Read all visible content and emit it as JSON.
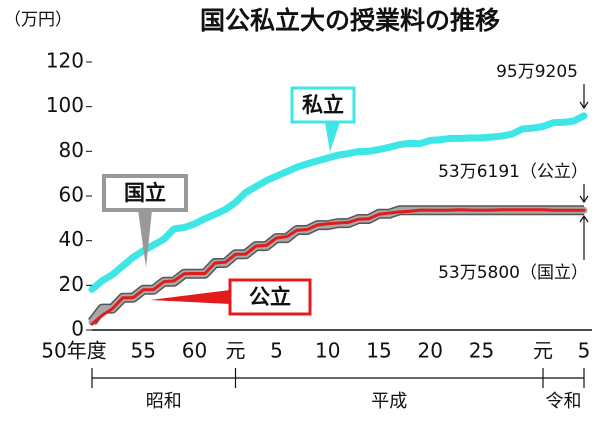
{
  "chart_data": {
    "type": "line",
    "title": "国公私立大の授業料の推移",
    "y_unit": "（万円）",
    "ylim": [
      0,
      120
    ],
    "yticks": [
      0,
      20,
      40,
      60,
      80,
      100,
      120
    ],
    "categories": [
      "50年度",
      null,
      null,
      null,
      null,
      "55",
      null,
      null,
      null,
      null,
      "60",
      null,
      null,
      null,
      "元",
      null,
      null,
      null,
      "5",
      null,
      null,
      null,
      null,
      "10",
      null,
      null,
      null,
      null,
      "15",
      null,
      null,
      null,
      null,
      "20",
      null,
      null,
      null,
      null,
      "25",
      null,
      null,
      null,
      null,
      null,
      "元",
      null,
      null,
      null,
      "5"
    ],
    "eras": [
      "昭和",
      "平成",
      "令和"
    ],
    "series": [
      {
        "name": "私立",
        "color": "#3fe6e6",
        "values": [
          18.2,
          22.1,
          24.8,
          28.7,
          32.5,
          35.5,
          38.0,
          40.6,
          45.3,
          45.9,
          47.5,
          49.8,
          51.8,
          53.9,
          57.1,
          61.6,
          64.2,
          66.9,
          68.9,
          70.9,
          72.9,
          74.4,
          75.7,
          77.0,
          78.3,
          79.0,
          79.9,
          80.0,
          80.8,
          81.8,
          83.0,
          83.6,
          83.4,
          84.9,
          85.2,
          85.8,
          85.8,
          86.0,
          86.0,
          86.4,
          86.8,
          87.8,
          90.0,
          90.4,
          91.1,
          92.8,
          93.0,
          93.6,
          95.9205
        ]
      },
      {
        "name": "国立",
        "color": "#a8a8a8",
        "values": [
          3.6,
          9.6,
          9.6,
          14.4,
          14.4,
          18.0,
          18.0,
          21.6,
          21.6,
          25.2,
          25.2,
          25.2,
          30.0,
          30.0,
          33.96,
          33.96,
          37.56,
          37.56,
          41.16,
          41.16,
          44.76,
          44.76,
          46.98,
          46.98,
          47.88,
          47.88,
          49.68,
          49.68,
          52.08,
          52.08,
          53.58,
          53.58,
          53.58,
          53.58,
          53.58,
          53.58,
          53.58,
          53.58,
          53.58,
          53.58,
          53.58,
          53.58,
          53.58,
          53.58,
          53.58,
          53.58,
          53.58,
          53.58,
          53.58
        ]
      },
      {
        "name": "公立",
        "color": "#e01c1c",
        "values": [
          2.7,
          6.6,
          9.6,
          14.4,
          14.4,
          18.0,
          18.1,
          21.6,
          22.0,
          25.2,
          25.3,
          25.3,
          30.0,
          30.3,
          33.9,
          33.99,
          37.6,
          37.9,
          41.2,
          41.8,
          44.7,
          45.0,
          47.0,
          47.6,
          47.9,
          48.2,
          49.6,
          49.8,
          51.8,
          52.4,
          52.9,
          53.2,
          53.7,
          53.7,
          53.6,
          53.7,
          53.8,
          53.7,
          53.7,
          53.7,
          53.8,
          53.8,
          53.8,
          53.8,
          53.8,
          53.6,
          53.6,
          53.6,
          53.6191
        ]
      }
    ],
    "annotations": [
      "95万9205",
      "53万6191（公立）",
      "53万5800（国立）"
    ]
  }
}
